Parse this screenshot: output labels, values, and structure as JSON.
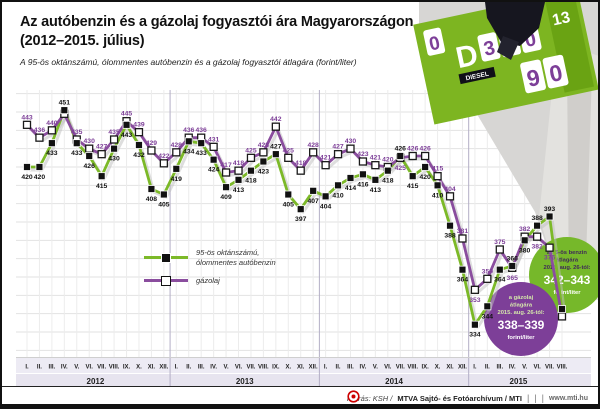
{
  "header": {
    "title_line1": "Az autóbenzin és a gázolaj fogyasztói ára Magyarországon",
    "title_line2": "(2012–2015. július)",
    "subtitle": "A 95-ös oktánszámú, ólommentes autóbenzin és a gázolaj fogyasztói átlagára (forint/liter)"
  },
  "chart_data": {
    "type": "line",
    "title": "Az autóbenzin és a gázolaj fogyasztói ára Magyarországon (2012–2015. július)",
    "ylabel": "forint/liter",
    "y_axis_labels_visible": false,
    "ylim": [
      318,
      462
    ],
    "grid_step": 10,
    "legend_position": "bottom-left",
    "months_roman": [
      "I.",
      "II.",
      "III.",
      "IV.",
      "V.",
      "VI.",
      "VII.",
      "VIII.",
      "IX.",
      "X.",
      "XI.",
      "XII."
    ],
    "year_groups": [
      {
        "label": "2012",
        "months": 12
      },
      {
        "label": "2013",
        "months": 12
      },
      {
        "label": "2014",
        "months": 12
      },
      {
        "label": "2015",
        "months": 8
      }
    ],
    "series": [
      {
        "name": "95-ös oktánszámú, ólommentes autóbenzin",
        "color": "#7cb928",
        "label_color": "#111111",
        "marker": "black-square",
        "values": [
          420,
          420,
          433,
          451,
          433,
          426,
          415,
          430,
          443,
          432,
          408,
          405,
          419,
          434,
          433,
          424,
          409,
          413,
          418,
          423,
          427,
          405,
          397,
          407,
          404,
          410,
          414,
          416,
          413,
          418,
          426,
          415,
          420,
          410,
          388,
          364,
          334,
          344,
          364,
          366,
          380,
          388,
          393,
          342.5
        ],
        "skip_labels": [
          43
        ],
        "label_side_overrides": {
          "20": "above"
        }
      },
      {
        "name": "gázolaj",
        "color": "#8a4d9e",
        "label_color": "#7d3f98",
        "marker": "white-square",
        "values": [
          443,
          436,
          440,
          449,
          435,
          430,
          427,
          435,
          445,
          439,
          429,
          422,
          428,
          436,
          436,
          431,
          417,
          418,
          425,
          428,
          442,
          425,
          418,
          428,
          421,
          427,
          430,
          423,
          421,
          420,
          425,
          426,
          426,
          415,
          404,
          381,
          353,
          359,
          375,
          365,
          382,
          382,
          376,
          338.5
        ],
        "skip_labels": [
          3,
          43
        ],
        "label_side_overrides": {
          "36": "below"
        }
      }
    ]
  },
  "legend": {
    "benzin_line1": "95-ös oktánszámú,",
    "benzin_line2": "ólommentes autóbenzin",
    "gazolaj": "gázolaj"
  },
  "annotations": {
    "benzin_bubble": {
      "color": "#76b82a",
      "line1": "a 95-ös benzin",
      "line2": "átlagára",
      "line3": "2015. aug. 26-tól:",
      "value": "342–343",
      "unit": "forint/liter"
    },
    "gazolaj_bubble": {
      "color": "#7d3f98",
      "line1": "a gázolaj",
      "line2": "átlagára",
      "line3": "2015. aug. 26-tól:",
      "value": "338–339",
      "unit": "forint/liter"
    }
  },
  "photo": {
    "letter": "D",
    "tiles": [
      "0",
      "3",
      "4",
      "0",
      "9",
      "0"
    ],
    "side_digits": "13",
    "diesel_label": "DIESEL"
  },
  "footer": {
    "source_prefix": "Forrás: KSH /",
    "source_bold": "MTVA Sajtó- és Fotóarchívum / MTI",
    "website": "www.mti.hu"
  },
  "colors": {
    "benzin_line": "#7cb928",
    "gazolaj_line": "#8a4d9e",
    "board_green": "#7db521"
  }
}
